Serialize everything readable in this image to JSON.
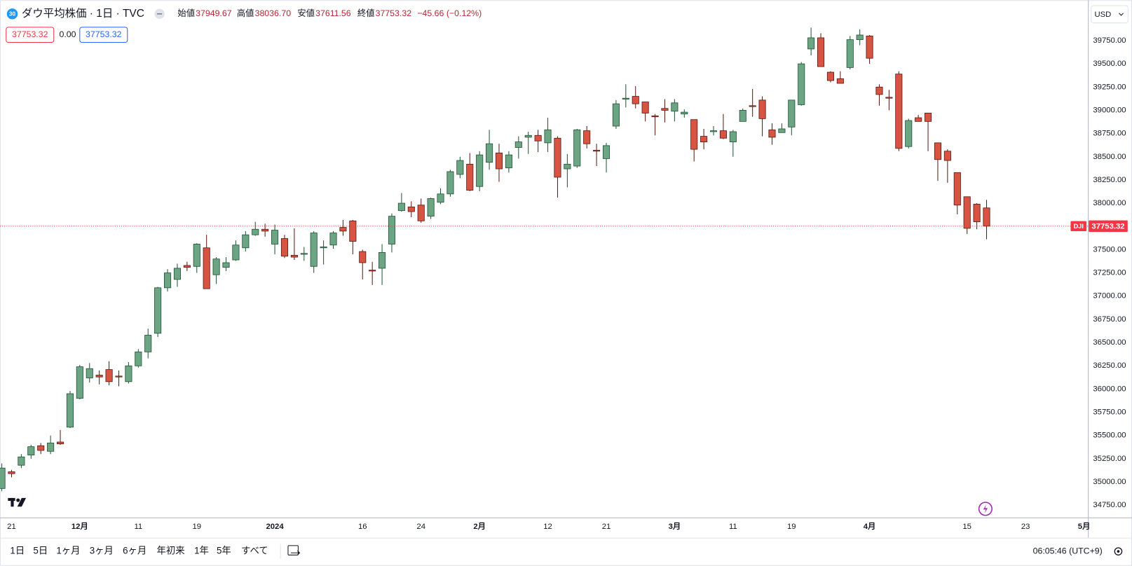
{
  "header": {
    "badge": "30",
    "title": "ダウ平均株価 · 1日 · TVC",
    "ohlc": [
      {
        "label": "始値",
        "value": "37949.67"
      },
      {
        "label": "高値",
        "value": "38036.70"
      },
      {
        "label": "安値",
        "value": "37611.56"
      },
      {
        "label": "終値",
        "value": "37753.32"
      }
    ],
    "change": "−45.66 (−0.12%)",
    "inputs": [
      "37753.32",
      "0.00",
      "37753.32"
    ]
  },
  "currency": "USD",
  "price_tag": "DJI",
  "toolbar": {
    "ranges": [
      "1日",
      "5日",
      "1ヶ月",
      "3ヶ月",
      "6ヶ月",
      "年初来",
      "1年",
      "5年",
      "すべて"
    ],
    "time": "06:05:46 (UTC+9)"
  },
  "chart_data": {
    "type": "candlestick",
    "up_color": "#6ba583",
    "down_color": "#d75442",
    "open": [
      34930,
      35110,
      35180,
      35290,
      35390,
      35330,
      35430,
      35590,
      35900,
      36120,
      36150,
      36210,
      36140,
      36080,
      36250,
      36400,
      36600,
      37090,
      37180,
      37330,
      37320,
      37520,
      37230,
      37310,
      37390,
      37520,
      37660,
      37720,
      37560,
      37620,
      37440,
      37450,
      37320,
      37520,
      37550,
      37740,
      37810,
      37480,
      37280,
      37300,
      37560,
      37920,
      37960,
      37980,
      37860,
      38010,
      38100,
      38310,
      38420,
      38180,
      38440,
      38540,
      38380,
      38600,
      38710,
      38730,
      38650,
      38700,
      38370,
      38400,
      38780,
      38570,
      38480,
      38830,
      39120,
      39150,
      39090,
      38940,
      39020,
      38990,
      38960,
      38900,
      38720,
      38770,
      38780,
      38660,
      38880,
      39050,
      39110,
      38790,
      38760,
      38820,
      39060,
      39660,
      39780,
      39410,
      39340,
      39460,
      39760,
      39800,
      39250,
      39140,
      39390,
      38610,
      38920,
      38970,
      38650,
      38560,
      38330,
      38070,
      37990,
      37949.67
    ],
    "high": [
      35200,
      35130,
      35300,
      35400,
      35420,
      35500,
      35560,
      35980,
      36260,
      36280,
      36200,
      36300,
      36200,
      36290,
      36430,
      36650,
      37100,
      37290,
      37350,
      37370,
      37570,
      37660,
      37420,
      37420,
      37600,
      37700,
      37800,
      37780,
      37770,
      37660,
      37730,
      37530,
      37700,
      37600,
      37700,
      37820,
      37820,
      37500,
      37370,
      37560,
      37890,
      38110,
      38020,
      38050,
      38060,
      38160,
      38360,
      38500,
      38540,
      38560,
      38790,
      38640,
      38560,
      38720,
      38770,
      38790,
      38920,
      38720,
      38530,
      38800,
      38830,
      38640,
      38650,
      39110,
      39280,
      39260,
      39090,
      38960,
      39120,
      39120,
      39010,
      38900,
      38800,
      38830,
      38960,
      38790,
      39020,
      39230,
      39150,
      38860,
      38860,
      39110,
      39520,
      39890,
      39830,
      39420,
      39420,
      39800,
      39870,
      39810,
      39280,
      39220,
      39420,
      38910,
      38950,
      38970,
      38650,
      38580,
      38330,
      38070,
      38000,
      38036.7
    ],
    "low": [
      34900,
      35050,
      35150,
      35250,
      35300,
      35300,
      35400,
      35580,
      35890,
      36070,
      36050,
      36040,
      36030,
      36060,
      36230,
      36330,
      36560,
      37050,
      37100,
      37270,
      37250,
      37080,
      37130,
      37270,
      37380,
      37480,
      37650,
      37640,
      37450,
      37410,
      37390,
      37380,
      37250,
      37340,
      37510,
      37650,
      37450,
      37180,
      37120,
      37120,
      37470,
      37910,
      37850,
      37790,
      37830,
      37990,
      38070,
      38270,
      38130,
      38130,
      38360,
      38230,
      38330,
      38480,
      38530,
      38550,
      38550,
      38060,
      38170,
      38380,
      38590,
      38400,
      38330,
      38800,
      39030,
      39020,
      38880,
      38730,
      38870,
      38880,
      38920,
      38450,
      38580,
      38730,
      38690,
      38500,
      38880,
      38930,
      38720,
      38630,
      38770,
      38730,
      39050,
      39590,
      39470,
      39300,
      39290,
      39440,
      39700,
      39500,
      39050,
      39000,
      38560,
      38590,
      38880,
      38560,
      38240,
      38220,
      37880,
      37670,
      37720,
      37611.56
    ],
    "close": [
      35150,
      35090,
      35270,
      35380,
      35340,
      35420,
      35410,
      35950,
      36240,
      36220,
      36130,
      36080,
      36130,
      36250,
      36400,
      36580,
      37090,
      37250,
      37300,
      37310,
      37560,
      37080,
      37400,
      37360,
      37550,
      37660,
      37720,
      37700,
      37710,
      37430,
      37420,
      37460,
      37680,
      37530,
      37680,
      37700,
      37590,
      37360,
      37270,
      37470,
      37860,
      38000,
      37910,
      37810,
      38050,
      38100,
      38340,
      38460,
      38140,
      38520,
      38640,
      38370,
      38520,
      38660,
      38730,
      38670,
      38790,
      38280,
      38420,
      38790,
      38640,
      38560,
      38620,
      39070,
      39130,
      39070,
      38970,
      38930,
      39000,
      39080,
      38980,
      38580,
      38660,
      38780,
      38700,
      38770,
      39000,
      39040,
      38910,
      38710,
      38800,
      39110,
      39500,
      39780,
      39470,
      39320,
      39290,
      39760,
      39810,
      39560,
      39170,
      39130,
      38590,
      38890,
      38880,
      38880,
      38470,
      38460,
      37980,
      37730,
      37800,
      37753.32
    ],
    "xlim": [
      -0.185,
      111.4
    ],
    "xticks": [
      {
        "value": 1,
        "label": "21"
      },
      {
        "value": 8,
        "label": "12月"
      },
      {
        "value": 14,
        "label": "11"
      },
      {
        "value": 20,
        "label": "19"
      },
      {
        "value": 28,
        "label": "2024"
      },
      {
        "value": 37,
        "label": "16"
      },
      {
        "value": 43,
        "label": "24"
      },
      {
        "value": 49,
        "label": "2月"
      },
      {
        "value": 56,
        "label": "12"
      },
      {
        "value": 62,
        "label": "21"
      },
      {
        "value": 69,
        "label": "3月"
      },
      {
        "value": 75,
        "label": "11"
      },
      {
        "value": 81,
        "label": "19"
      },
      {
        "value": 89,
        "label": "4月"
      },
      {
        "value": 99,
        "label": "15"
      },
      {
        "value": 105,
        "label": "23"
      },
      {
        "value": 111,
        "label": "5月"
      }
    ],
    "ylim": [
      34618,
      40185
    ],
    "yticks": [
      {
        "value": 34750,
        "label": "34750.00"
      },
      {
        "value": 35000,
        "label": "35000.00"
      },
      {
        "value": 35250,
        "label": "35250.00"
      },
      {
        "value": 35500,
        "label": "35500.00"
      },
      {
        "value": 35750,
        "label": "35750.00"
      },
      {
        "value": 36000,
        "label": "36000.00"
      },
      {
        "value": 36250,
        "label": "36250.00"
      },
      {
        "value": 36500,
        "label": "36500.00"
      },
      {
        "value": 36750,
        "label": "36750.00"
      },
      {
        "value": 37000,
        "label": "37000.00"
      },
      {
        "value": 37250,
        "label": "37250.00"
      },
      {
        "value": 37500,
        "label": "37500.00"
      },
      {
        "value": 37750,
        "label": "37750.00"
      },
      {
        "value": 38000,
        "label": "38000.00"
      },
      {
        "value": 38250,
        "label": "38250.00"
      },
      {
        "value": 38500,
        "label": "38500.00"
      },
      {
        "value": 38750,
        "label": "38750.00"
      },
      {
        "value": 39000,
        "label": "39000.00"
      },
      {
        "value": 39250,
        "label": "39250.00"
      },
      {
        "value": 39500,
        "label": "39500.00"
      },
      {
        "value": 39750,
        "label": "39750.00"
      }
    ],
    "grid": false
  }
}
